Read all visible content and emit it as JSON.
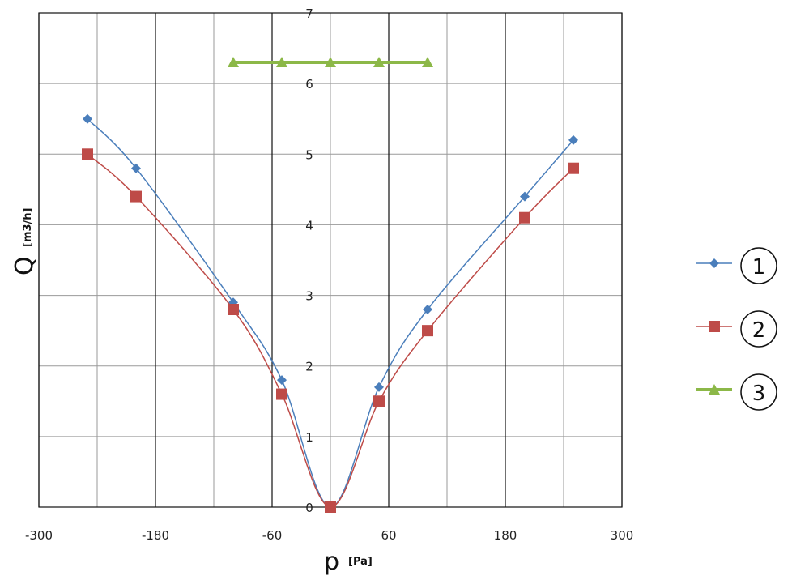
{
  "chart_data": {
    "type": "line",
    "xlabel": "p",
    "xlabel_unit": "[Pa]",
    "ylabel": "Q",
    "ylabel_unit": "[m3/h]",
    "xlim": [
      -300,
      300
    ],
    "ylim": [
      0,
      7
    ],
    "x_ticks": [
      -300,
      -180,
      -60,
      60,
      180,
      300
    ],
    "x_tick_labels": [
      "-300",
      "-180",
      "-60",
      "60",
      "180",
      "300"
    ],
    "x_minor_grid": [
      -240,
      -120,
      0,
      120,
      240
    ],
    "y_ticks": [
      0,
      1,
      2,
      3,
      4,
      5,
      6,
      7
    ],
    "y_tick_labels": [
      "0",
      "1",
      "2",
      "3",
      "4",
      "5",
      "6",
      "7"
    ],
    "grid": true,
    "legend_position": "right",
    "series": [
      {
        "name": "1",
        "color": "#4a7ebb",
        "marker": "diamond",
        "smooth": true,
        "x": [
          -250,
          -200,
          -100,
          -50,
          0,
          50,
          100,
          200,
          250
        ],
        "y": [
          5.5,
          4.8,
          2.9,
          1.8,
          0,
          1.7,
          2.8,
          4.4,
          5.2
        ]
      },
      {
        "name": "2",
        "color": "#be4b48",
        "marker": "square",
        "smooth": true,
        "x": [
          -250,
          -200,
          -100,
          -50,
          0,
          50,
          100,
          200,
          250
        ],
        "y": [
          5.0,
          4.4,
          2.8,
          1.6,
          0,
          1.5,
          2.5,
          4.1,
          4.8
        ]
      },
      {
        "name": "3",
        "color": "#8cb848",
        "marker": "triangle",
        "smooth": false,
        "x": [
          -100,
          -50,
          0,
          50,
          100
        ],
        "y": [
          6.3,
          6.3,
          6.3,
          6.3,
          6.3
        ]
      }
    ]
  }
}
